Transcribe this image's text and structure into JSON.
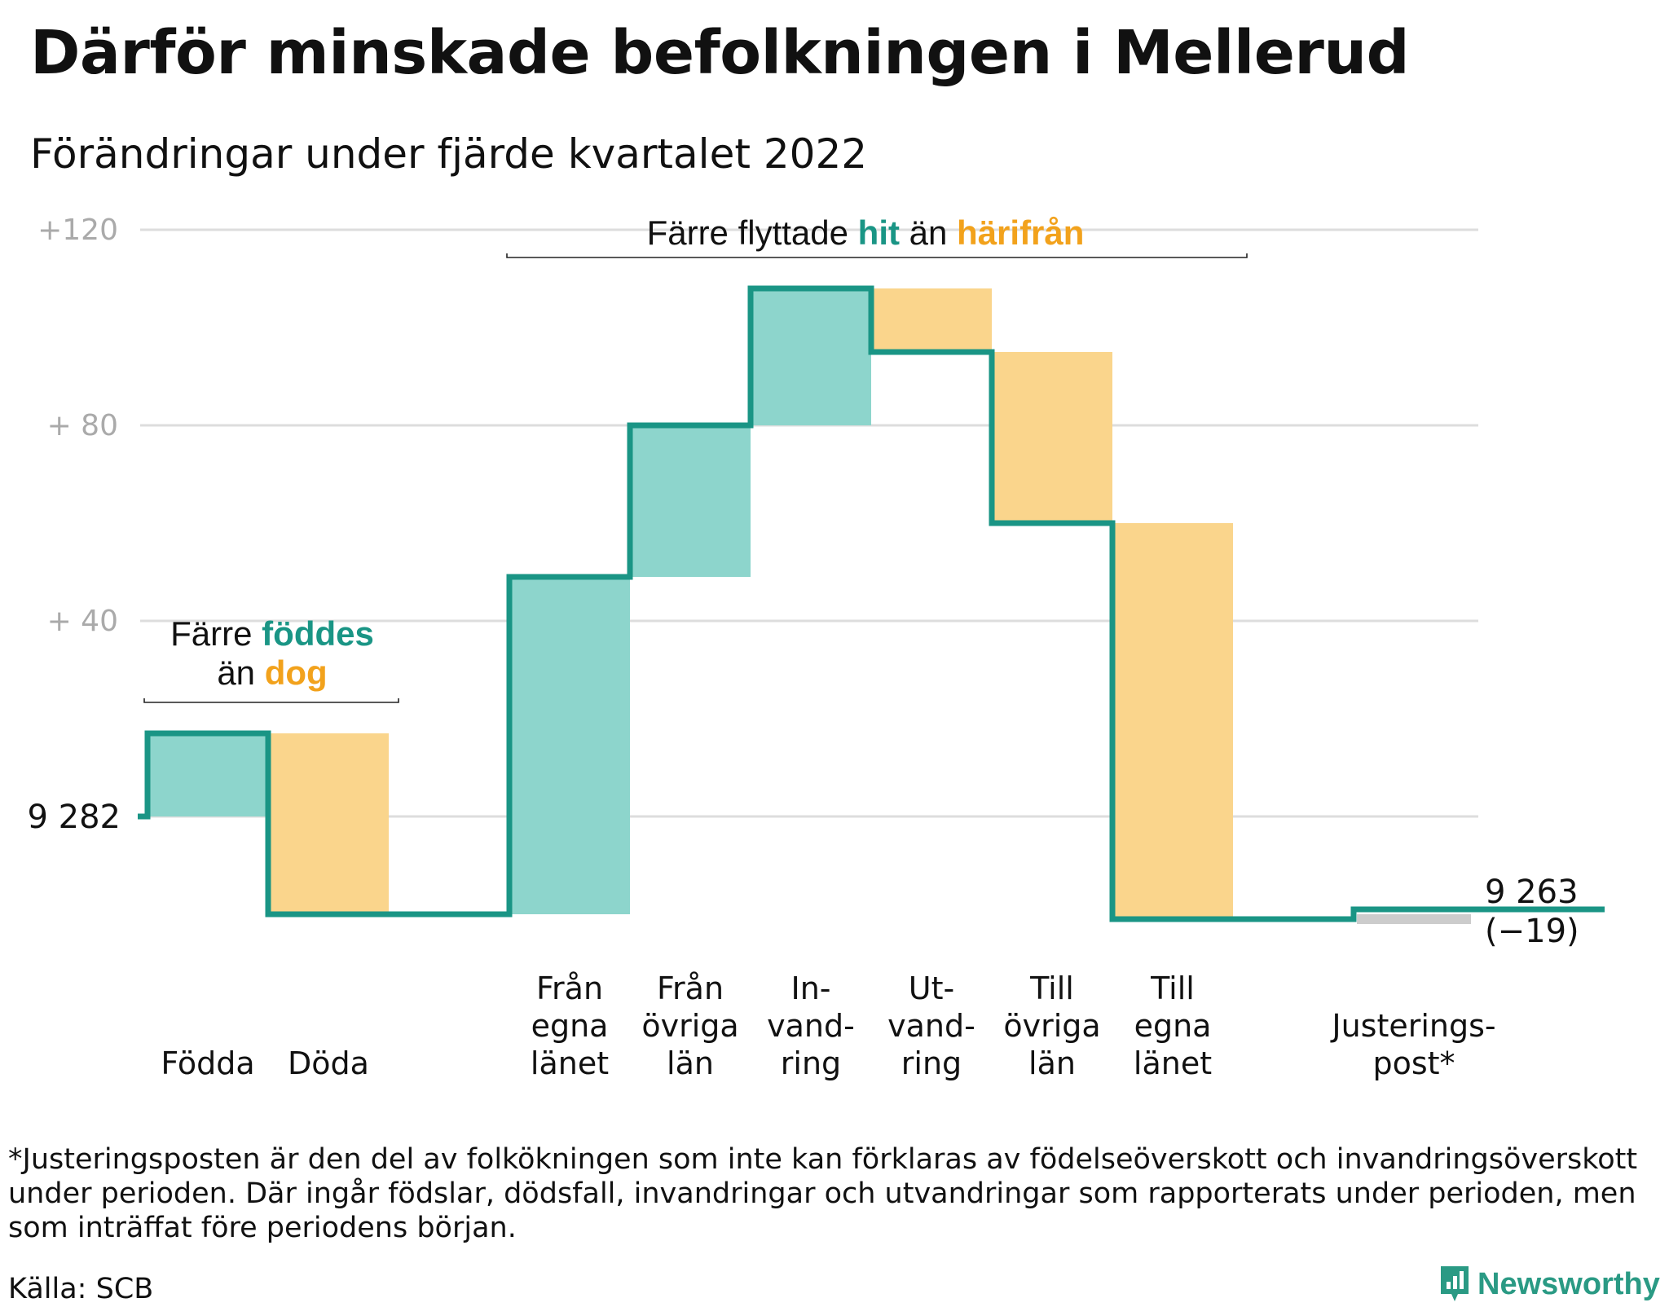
{
  "title": "Därför minskade befolkningen i Mellerud",
  "subtitle": "Förändringar under fjärde kvartalet 2022",
  "chart_data": {
    "type": "waterfall",
    "start_value": 9282,
    "start_label": "9 282",
    "end_value": 9263,
    "end_label": "9 263",
    "end_change_label": "(−19)",
    "y_tick_labels": [
      "+120",
      "+ 80",
      "+ 40"
    ],
    "y_ticks": [
      120,
      80,
      40
    ],
    "ylim": [
      -25,
      120
    ],
    "grid": true,
    "colors": {
      "line": "#1a9585",
      "increase": "#8dd5cc",
      "decrease": "#fad58c",
      "adjustment": "#cccccc",
      "grid": "#dddddd",
      "tick_text": "#aaaaaa"
    },
    "steps": [
      {
        "label": [
          "Födda"
        ],
        "change": 17
      },
      {
        "label": [
          "Döda"
        ],
        "change": -37
      },
      {
        "label": [],
        "change": 0
      },
      {
        "label": [
          "Från",
          "egna",
          "länet"
        ],
        "change": 69
      },
      {
        "label": [
          "Från",
          "övriga",
          "län"
        ],
        "change": 31
      },
      {
        "label": [
          "In-",
          "vand-",
          "ring"
        ],
        "change": 28
      },
      {
        "label": [
          "Ut-",
          "vand-",
          "ring"
        ],
        "change": -13
      },
      {
        "label": [
          "Till",
          "övriga",
          "län"
        ],
        "change": -35
      },
      {
        "label": [
          "Till",
          "egna",
          "länet"
        ],
        "change": -81
      },
      {
        "label": [],
        "change": 0
      },
      {
        "label": [
          "Justerings-",
          "post*"
        ],
        "change": 2
      },
      {
        "label": [],
        "change": 0
      }
    ],
    "annotations": [
      {
        "parts": [
          {
            "text": "Färre ",
            "color": "#111111"
          },
          {
            "text": "föddes",
            "color": "#1a9585",
            "bold": true
          }
        ],
        "parts2": [
          {
            "text": "än ",
            "color": "#111111"
          },
          {
            "text": "dog",
            "color": "#f2a21c",
            "bold": true
          }
        ]
      },
      {
        "parts": [
          {
            "text": "Färre flyttade ",
            "color": "#111111"
          },
          {
            "text": "hit",
            "color": "#1a9585",
            "bold": true
          },
          {
            "text": " än ",
            "color": "#111111"
          },
          {
            "text": "härifrån",
            "color": "#f2a21c",
            "bold": true
          }
        ]
      }
    ]
  },
  "footnote": "*Justeringsposten är den del av folkökningen som inte kan förklaras av födelseöverskott och invandringsöverskott under perioden. Där ingår födslar, dödsfall, invandringar och utvandringar som rapporterats under perioden, men som inträffat före periodens början.",
  "source": "Källa: SCB",
  "brand": "Newsworthy",
  "brand_icon": "newsworthy-logo-icon"
}
